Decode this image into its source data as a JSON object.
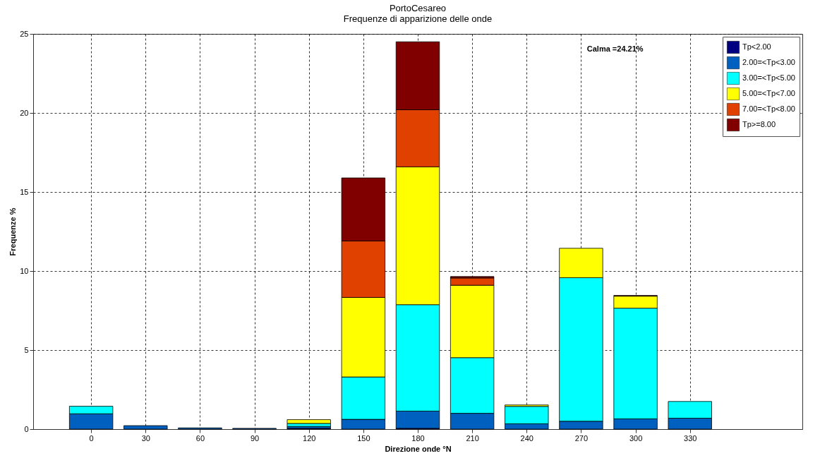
{
  "chart_data": {
    "type": "bar",
    "stacked": true,
    "title": "PortoCesareo",
    "subtitle": "Frequenze di apparizione delle onde",
    "xlabel": "Direzione onde °N",
    "ylabel": "Frequenze %",
    "x": [
      0,
      30,
      60,
      90,
      120,
      150,
      180,
      210,
      240,
      270,
      300,
      330
    ],
    "xlim": [
      -30,
      390
    ],
    "xticks": [
      0,
      30,
      60,
      90,
      120,
      150,
      180,
      210,
      240,
      270,
      300,
      330
    ],
    "ylim": [
      0,
      25
    ],
    "yticks": [
      0,
      5,
      10,
      15,
      20,
      25
    ],
    "series": [
      {
        "name": "Tp<2.00",
        "color": "#000080",
        "values": [
          null,
          null,
          null,
          null,
          0.05,
          null,
          0.05,
          null,
          null,
          null,
          null,
          null
        ]
      },
      {
        "name": "2.00=<Tp<3.00",
        "color": "#0060c0",
        "values": [
          0.97,
          0.22,
          0.08,
          0.05,
          0.12,
          0.62,
          1.09,
          1.0,
          0.34,
          0.5,
          0.65,
          0.69
        ]
      },
      {
        "name": "3.00=<Tp<5.00",
        "color": "#00ffff",
        "values": [
          0.48,
          null,
          null,
          null,
          0.19,
          2.68,
          6.73,
          3.52,
          1.1,
          9.08,
          7.0,
          1.06
        ]
      },
      {
        "name": "5.00=<Tp<7.00",
        "color": "#ffff00",
        "values": [
          null,
          null,
          null,
          null,
          0.24,
          5.03,
          8.72,
          4.58,
          0.09,
          1.86,
          0.76,
          null
        ]
      },
      {
        "name": "7.00=<Tp<8.00",
        "color": "#e04000",
        "values": [
          null,
          null,
          null,
          null,
          null,
          3.57,
          3.61,
          0.46,
          null,
          null,
          0.05,
          null
        ]
      },
      {
        "name": "Tp>=8.00",
        "color": "#800000",
        "values": [
          null,
          null,
          null,
          null,
          null,
          3.99,
          4.3,
          0.09,
          null,
          null,
          null,
          null
        ]
      }
    ],
    "annotations": [
      "Calma =24.21%"
    ],
    "grid": true,
    "legend": "top right"
  }
}
